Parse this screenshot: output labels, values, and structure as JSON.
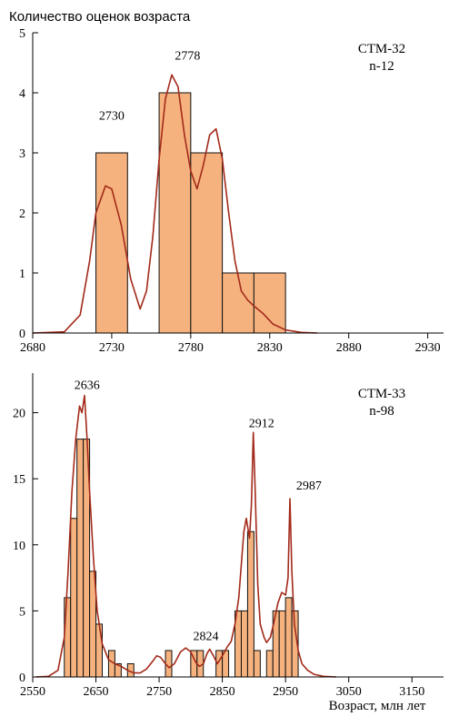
{
  "chart_data": [
    {
      "type": "bar",
      "subtype": "histogram-with-density-curve",
      "ylabel": "Количество оценок возраста",
      "label_line1": "СТМ-32",
      "label_line2": "n-12",
      "xlim": [
        2680,
        2940
      ],
      "ylim": [
        0,
        5
      ],
      "xticks": [
        "2680",
        "2730",
        "2780",
        "2830",
        "2880",
        "2930"
      ],
      "yticks": [
        "0",
        "1",
        "2",
        "3",
        "4",
        "5"
      ],
      "bin_width": 20,
      "bins": [
        {
          "start": 2720,
          "count": 3
        },
        {
          "start": 2760,
          "count": 4
        },
        {
          "start": 2780,
          "count": 3
        },
        {
          "start": 2800,
          "count": 1
        },
        {
          "start": 2820,
          "count": 1
        }
      ],
      "peaks": [
        {
          "label": "2730",
          "x": 2730,
          "y": 3.55
        },
        {
          "label": "2778",
          "x": 2778,
          "y": 4.55
        }
      ],
      "curve": [
        [
          2680,
          0
        ],
        [
          2700,
          0.02
        ],
        [
          2710,
          0.3
        ],
        [
          2716,
          1.2
        ],
        [
          2720,
          2.0
        ],
        [
          2726,
          2.45
        ],
        [
          2730,
          2.4
        ],
        [
          2736,
          1.8
        ],
        [
          2742,
          0.9
        ],
        [
          2748,
          0.4
        ],
        [
          2752,
          0.7
        ],
        [
          2756,
          1.6
        ],
        [
          2760,
          2.9
        ],
        [
          2764,
          3.9
        ],
        [
          2768,
          4.3
        ],
        [
          2772,
          4.1
        ],
        [
          2776,
          3.3
        ],
        [
          2780,
          2.7
        ],
        [
          2784,
          2.4
        ],
        [
          2788,
          2.8
        ],
        [
          2792,
          3.3
        ],
        [
          2796,
          3.4
        ],
        [
          2800,
          2.9
        ],
        [
          2804,
          2.0
        ],
        [
          2808,
          1.2
        ],
        [
          2812,
          0.7
        ],
        [
          2816,
          0.55
        ],
        [
          2820,
          0.45
        ],
        [
          2826,
          0.32
        ],
        [
          2832,
          0.15
        ],
        [
          2840,
          0.05
        ],
        [
          2850,
          0.01
        ],
        [
          2860,
          0
        ]
      ]
    },
    {
      "type": "bar",
      "subtype": "histogram-with-density-curve",
      "label_line1": "СТМ-33",
      "label_line2": "n-98",
      "xlabel": "Возраст, млн лет",
      "xlim": [
        2550,
        3200
      ],
      "ylim": [
        0,
        23
      ],
      "xticks": [
        "2550",
        "2650",
        "2750",
        "2850",
        "2950",
        "3050",
        "3150"
      ],
      "yticks": [
        "0",
        "5",
        "10",
        "15",
        "20"
      ],
      "bin_width": 10,
      "bins": [
        {
          "start": 2600,
          "count": 6
        },
        {
          "start": 2610,
          "count": 12
        },
        {
          "start": 2620,
          "count": 18
        },
        {
          "start": 2630,
          "count": 18
        },
        {
          "start": 2640,
          "count": 8
        },
        {
          "start": 2650,
          "count": 4
        },
        {
          "start": 2670,
          "count": 2
        },
        {
          "start": 2680,
          "count": 1
        },
        {
          "start": 2700,
          "count": 1
        },
        {
          "start": 2760,
          "count": 2
        },
        {
          "start": 2800,
          "count": 2
        },
        {
          "start": 2810,
          "count": 2
        },
        {
          "start": 2840,
          "count": 2
        },
        {
          "start": 2850,
          "count": 2
        },
        {
          "start": 2870,
          "count": 5
        },
        {
          "start": 2880,
          "count": 5
        },
        {
          "start": 2890,
          "count": 11
        },
        {
          "start": 2900,
          "count": 2
        },
        {
          "start": 2920,
          "count": 2
        },
        {
          "start": 2930,
          "count": 5
        },
        {
          "start": 2940,
          "count": 5
        },
        {
          "start": 2950,
          "count": 6
        },
        {
          "start": 2960,
          "count": 5
        }
      ],
      "peaks": [
        {
          "label": "2636",
          "x": 2636,
          "y": 21.8
        },
        {
          "label": "2912",
          "x": 2912,
          "y": 18.9
        },
        {
          "label": "2987",
          "x": 2987,
          "y": 14.2
        },
        {
          "label": "2824",
          "x": 2824,
          "y": 2.8
        }
      ],
      "curve": [
        [
          2555,
          0
        ],
        [
          2575,
          0.05
        ],
        [
          2590,
          0.5
        ],
        [
          2600,
          3
        ],
        [
          2606,
          8
        ],
        [
          2612,
          14
        ],
        [
          2618,
          18
        ],
        [
          2624,
          20.5
        ],
        [
          2628,
          20
        ],
        [
          2632,
          21.3
        ],
        [
          2636,
          18
        ],
        [
          2640,
          14
        ],
        [
          2646,
          9
        ],
        [
          2652,
          5
        ],
        [
          2660,
          2.5
        ],
        [
          2670,
          1.3
        ],
        [
          2680,
          1
        ],
        [
          2690,
          0.8
        ],
        [
          2700,
          0.5
        ],
        [
          2710,
          0.3
        ],
        [
          2720,
          0.3
        ],
        [
          2730,
          0.6
        ],
        [
          2740,
          1.2
        ],
        [
          2746,
          1.6
        ],
        [
          2752,
          1.5
        ],
        [
          2760,
          1.0
        ],
        [
          2766,
          0.7
        ],
        [
          2774,
          1.0
        ],
        [
          2784,
          1.9
        ],
        [
          2792,
          2.2
        ],
        [
          2800,
          1.9
        ],
        [
          2808,
          1.1
        ],
        [
          2814,
          0.8
        ],
        [
          2820,
          1.0
        ],
        [
          2826,
          1.8
        ],
        [
          2830,
          2.1
        ],
        [
          2836,
          1.6
        ],
        [
          2842,
          1.0
        ],
        [
          2850,
          1.6
        ],
        [
          2858,
          2.3
        ],
        [
          2864,
          2.7
        ],
        [
          2870,
          4
        ],
        [
          2876,
          6
        ],
        [
          2880,
          8.5
        ],
        [
          2884,
          11
        ],
        [
          2888,
          12
        ],
        [
          2893,
          10.5
        ],
        [
          2896,
          13
        ],
        [
          2899,
          18.5
        ],
        [
          2902,
          14
        ],
        [
          2906,
          7
        ],
        [
          2910,
          4
        ],
        [
          2916,
          3
        ],
        [
          2920,
          2.6
        ],
        [
          2926,
          3
        ],
        [
          2932,
          4.2
        ],
        [
          2938,
          5.6
        ],
        [
          2944,
          6.4
        ],
        [
          2950,
          6.2
        ],
        [
          2954,
          7.5
        ],
        [
          2957,
          13.5
        ],
        [
          2960,
          8
        ],
        [
          2964,
          4
        ],
        [
          2970,
          2
        ],
        [
          2976,
          1
        ],
        [
          2985,
          0.5
        ],
        [
          2995,
          0.2
        ],
        [
          3010,
          0.05
        ],
        [
          3030,
          0
        ]
      ]
    }
  ]
}
